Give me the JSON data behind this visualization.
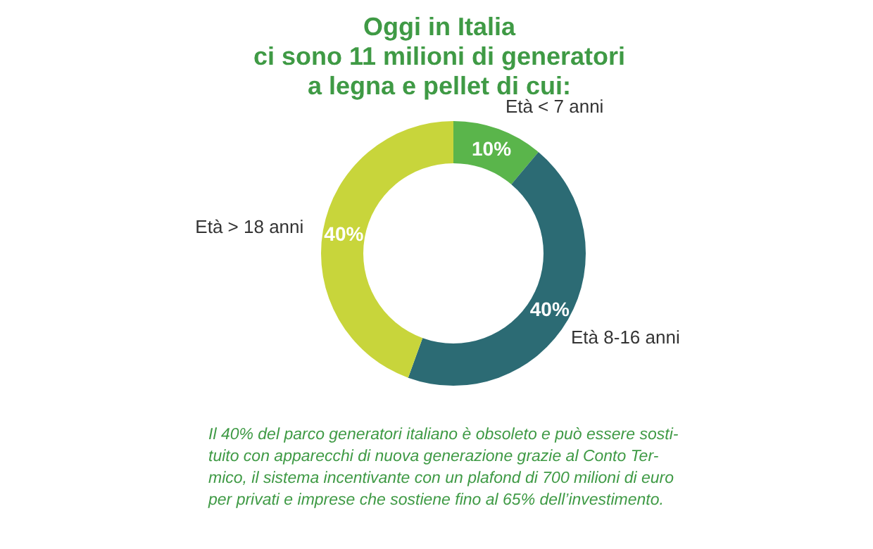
{
  "chart_data": {
    "type": "donut",
    "title": "Oggi in Italia\nci sono 11 milioni di generatori\na legna e pellet di cui:",
    "categories": [
      "Età < 7 anni",
      "Età 8-16 anni",
      "Età > 18 anni"
    ],
    "values": [
      10,
      40,
      40
    ],
    "colors": [
      "#5ab54b",
      "#2c6b74",
      "#c8d53b"
    ],
    "value_labels": [
      "10%",
      "40%",
      "40%"
    ],
    "annotations": [
      "Il 40% del parco generatori italiano è obsoleto e può essere sosti-\ntuito con apparecchi di nuova generazione grazie al Conto Ter-\nmico, il sistema incentivante con un plafond di 700 milioni di euro\nper privati e imprese che sostiene fino al 65% dell’investimento."
    ]
  }
}
